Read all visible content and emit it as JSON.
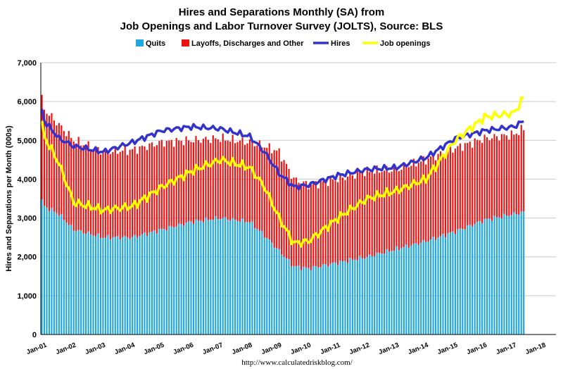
{
  "chart_data": {
    "type": "bar",
    "title": "Hires and Separations Monthly (SA) from",
    "subtitle": "Job Openings and Labor Turnover Survey (JOLTS), Source: BLS",
    "ylabel": "Hires and Separations per Month (000s)",
    "xlabel": "",
    "source": "http://www.calculatedriskblog.com/",
    "ylim": [
      0,
      7000
    ],
    "y_ticks": [
      "0",
      "1,000",
      "2,000",
      "3,000",
      "4,000",
      "5,000",
      "6,000",
      "7,000"
    ],
    "x_ticks": [
      "Jan-01",
      "Jan-02",
      "Jan-03",
      "Jan-04",
      "Jan-05",
      "Jan-06",
      "Jan-07",
      "Jan-08",
      "Jan-09",
      "Jan-10",
      "Jan-11",
      "Jan-12",
      "Jan-13",
      "Jan-14",
      "Jan-15",
      "Jan-16",
      "Jan-17",
      "Jan-18"
    ],
    "grid": true,
    "legend_position": "top",
    "stacked": true,
    "start_month": "Dec-2000",
    "end_month": "May-2017",
    "legend": [
      {
        "name": "Quits",
        "kind": "bar",
        "color": "#1ea7e1"
      },
      {
        "name": "Layoffs, Discharges and Other",
        "kind": "bar",
        "color": "#ee1111"
      },
      {
        "name": "Hires",
        "kind": "line",
        "color": "#3333cc"
      },
      {
        "name": "Job openings",
        "kind": "line",
        "color": "#ffff00"
      }
    ],
    "anchors": {
      "quits": [
        [
          "Dec-2000",
          3450
        ],
        [
          "Jan-2001",
          3300
        ],
        [
          "Jul-2001",
          3100
        ],
        [
          "Jan-2002",
          2700
        ],
        [
          "Jan-2003",
          2500
        ],
        [
          "Jan-2004",
          2500
        ],
        [
          "Jan-2005",
          2700
        ],
        [
          "Jan-2006",
          2900
        ],
        [
          "Jan-2007",
          3000
        ],
        [
          "Jan-2008",
          2900
        ],
        [
          "Jul-2008",
          2550
        ],
        [
          "Jan-2009",
          2150
        ],
        [
          "Jul-2009",
          1750
        ],
        [
          "Jan-2010",
          1700
        ],
        [
          "Jan-2011",
          1850
        ],
        [
          "Jan-2012",
          2000
        ],
        [
          "Jan-2013",
          2200
        ],
        [
          "Jan-2014",
          2400
        ],
        [
          "Jan-2015",
          2650
        ],
        [
          "Jan-2016",
          2950
        ],
        [
          "Jan-2017",
          3100
        ],
        [
          "May-2017",
          3150
        ]
      ],
      "separations_total": [
        [
          "Dec-2000",
          6050
        ],
        [
          "Jan-2001",
          5800
        ],
        [
          "Jul-2001",
          5400
        ],
        [
          "Jan-2002",
          5000
        ],
        [
          "Jan-2003",
          4700
        ],
        [
          "Jan-2004",
          4750
        ],
        [
          "Jan-2005",
          4950
        ],
        [
          "Jan-2006",
          5000
        ],
        [
          "Jan-2007",
          5050
        ],
        [
          "Jan-2008",
          4950
        ],
        [
          "Jul-2008",
          4850
        ],
        [
          "Jan-2009",
          4700
        ],
        [
          "Jul-2009",
          4000
        ],
        [
          "Jan-2010",
          3850
        ],
        [
          "Jan-2011",
          4000
        ],
        [
          "Jan-2012",
          4200
        ],
        [
          "Jan-2013",
          4250
        ],
        [
          "Jan-2014",
          4500
        ],
        [
          "Jan-2015",
          4800
        ],
        [
          "Jan-2016",
          5050
        ],
        [
          "Jan-2017",
          5150
        ],
        [
          "May-2017",
          5300
        ]
      ],
      "hires": [
        [
          "Dec-2000",
          5800
        ],
        [
          "Jan-2001",
          5500
        ],
        [
          "Jul-2001",
          5050
        ],
        [
          "Jan-2002",
          4850
        ],
        [
          "Jan-2003",
          4700
        ],
        [
          "Jan-2004",
          4950
        ],
        [
          "Jan-2005",
          5250
        ],
        [
          "Jan-2006",
          5350
        ],
        [
          "Jan-2007",
          5300
        ],
        [
          "Jan-2008",
          5100
        ],
        [
          "Jul-2008",
          4700
        ],
        [
          "Jan-2009",
          4150
        ],
        [
          "Jul-2009",
          3800
        ],
        [
          "Jan-2010",
          3850
        ],
        [
          "Jan-2011",
          4100
        ],
        [
          "Jan-2012",
          4250
        ],
        [
          "Jan-2013",
          4300
        ],
        [
          "Jan-2014",
          4550
        ],
        [
          "Jan-2015",
          5050
        ],
        [
          "Jan-2016",
          5250
        ],
        [
          "Jan-2017",
          5350
        ],
        [
          "May-2017",
          5500
        ]
      ],
      "job_openings": [
        [
          "Dec-2000",
          5400
        ],
        [
          "Jan-2001",
          5100
        ],
        [
          "Jul-2001",
          4400
        ],
        [
          "Jan-2002",
          3400
        ],
        [
          "Jan-2003",
          3200
        ],
        [
          "Jan-2004",
          3300
        ],
        [
          "Jan-2005",
          3800
        ],
        [
          "Jan-2006",
          4200
        ],
        [
          "Jan-2007",
          4500
        ],
        [
          "Jan-2008",
          4300
        ],
        [
          "Jul-2008",
          3800
        ],
        [
          "Jan-2009",
          3000
        ],
        [
          "Jul-2009",
          2350
        ],
        [
          "Jan-2010",
          2400
        ],
        [
          "Jan-2011",
          3000
        ],
        [
          "Jan-2012",
          3500
        ],
        [
          "Jan-2013",
          3700
        ],
        [
          "Jan-2014",
          4000
        ],
        [
          "Jan-2015",
          5000
        ],
        [
          "Jan-2016",
          5600
        ],
        [
          "Jan-2017",
          5700
        ],
        [
          "May-2017",
          6100
        ]
      ]
    }
  }
}
